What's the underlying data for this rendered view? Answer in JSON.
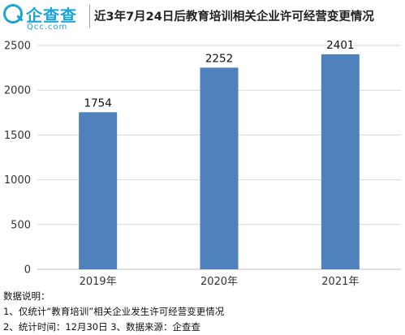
{
  "logo": {
    "name": "企查查",
    "sub": "Qcc.com"
  },
  "title": "近3年7月24日后教育培训相关企业许可经营变更情况",
  "chart_data": {
    "type": "bar",
    "categories": [
      "2019年",
      "2020年",
      "2021年"
    ],
    "values": [
      1754,
      2252,
      2401
    ],
    "yticks": [
      0,
      500,
      1000,
      1500,
      2000,
      2500
    ],
    "ylim": [
      0,
      2500
    ],
    "bar_color": "#4f81bd",
    "grid": true
  },
  "notes": {
    "heading": "数据说明：",
    "line1": "1、仅统计“教育培训”相关企业发生许可经营变更情况",
    "line2": "2、统计时间：12月30日 3、数据来源：企查查"
  }
}
